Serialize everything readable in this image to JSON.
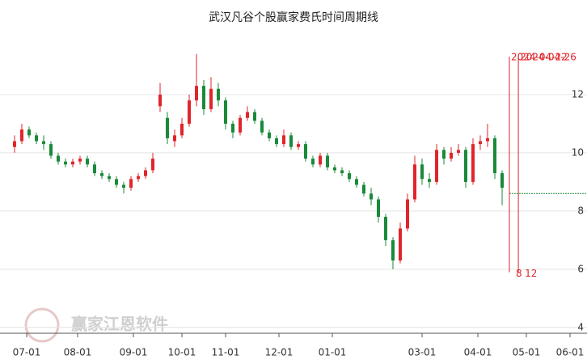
{
  "chart_data": {
    "type": "candlestick",
    "title": "武汉凡谷个股赢家费氏时间周期线",
    "watermark": "赢家江恩软件",
    "up_color": "#e0252b",
    "down_color": "#1a8a3a",
    "xlim": [
      0,
      236
    ],
    "ylim": [
      3.8,
      14
    ],
    "xticks": [
      {
        "value": 5,
        "label": "07-01"
      },
      {
        "value": 26,
        "label": "08-01"
      },
      {
        "value": 49,
        "label": "09-01"
      },
      {
        "value": 69,
        "label": "10-01"
      },
      {
        "value": 87,
        "label": "11-01"
      },
      {
        "value": 109,
        "label": "12-01"
      },
      {
        "value": 131,
        "label": "01-01"
      },
      {
        "value": 168,
        "label": "03-01"
      },
      {
        "value": 191,
        "label": "04-01"
      },
      {
        "value": 211,
        "label": "05-01"
      },
      {
        "value": 229,
        "label": "06-01"
      }
    ],
    "yticks": [
      4,
      6,
      8,
      10,
      12
    ],
    "grid": true,
    "x": [
      0,
      3,
      6,
      9,
      12,
      15,
      18,
      21,
      24,
      27,
      30,
      33,
      36,
      39,
      42,
      45,
      48,
      51,
      54,
      57,
      60,
      63,
      66,
      69,
      72,
      75,
      78,
      81,
      84,
      87,
      90,
      93,
      96,
      99,
      102,
      105,
      108,
      111,
      114,
      117,
      120,
      123,
      126,
      129,
      132,
      135,
      138,
      141,
      144,
      147,
      150,
      153,
      156,
      159,
      162,
      165,
      168,
      171,
      174,
      177,
      180,
      183,
      186,
      189,
      192,
      195,
      198,
      201
    ],
    "candles": [
      [
        10.2,
        10.6,
        10.0,
        10.4
      ],
      [
        10.4,
        11.0,
        10.3,
        10.8
      ],
      [
        10.8,
        10.9,
        10.5,
        10.6
      ],
      [
        10.6,
        10.7,
        10.3,
        10.4
      ],
      [
        10.4,
        10.6,
        10.1,
        10.3
      ],
      [
        10.3,
        10.4,
        9.8,
        9.9
      ],
      [
        9.9,
        10.0,
        9.6,
        9.7
      ],
      [
        9.7,
        9.8,
        9.5,
        9.6
      ],
      [
        9.6,
        9.8,
        9.5,
        9.7
      ],
      [
        9.7,
        9.9,
        9.6,
        9.8
      ],
      [
        9.8,
        9.9,
        9.5,
        9.6
      ],
      [
        9.6,
        9.7,
        9.2,
        9.3
      ],
      [
        9.3,
        9.4,
        9.1,
        9.2
      ],
      [
        9.2,
        9.3,
        9.0,
        9.1
      ],
      [
        9.1,
        9.2,
        8.8,
        8.9
      ],
      [
        8.9,
        9.0,
        8.6,
        8.8
      ],
      [
        8.8,
        9.2,
        8.7,
        9.1
      ],
      [
        9.1,
        9.3,
        9.0,
        9.2
      ],
      [
        9.2,
        9.5,
        9.1,
        9.4
      ],
      [
        9.4,
        10.0,
        9.3,
        9.8
      ],
      [
        11.6,
        12.4,
        11.4,
        12.0
      ],
      [
        11.2,
        11.4,
        10.3,
        10.5
      ],
      [
        10.4,
        10.8,
        10.2,
        10.6
      ],
      [
        10.6,
        11.2,
        10.5,
        11.0
      ],
      [
        11.0,
        12.0,
        10.9,
        11.8
      ],
      [
        11.8,
        13.4,
        11.6,
        12.3
      ],
      [
        12.3,
        12.5,
        11.3,
        11.5
      ],
      [
        11.5,
        12.6,
        11.4,
        12.2
      ],
      [
        12.2,
        12.4,
        11.6,
        11.8
      ],
      [
        11.8,
        11.9,
        10.8,
        11.0
      ],
      [
        11.0,
        11.1,
        10.5,
        10.7
      ],
      [
        10.7,
        11.3,
        10.6,
        11.2
      ],
      [
        11.2,
        11.6,
        11.1,
        11.4
      ],
      [
        11.4,
        11.5,
        11.0,
        11.1
      ],
      [
        11.1,
        11.2,
        10.6,
        10.7
      ],
      [
        10.7,
        10.8,
        10.4,
        10.5
      ],
      [
        10.5,
        10.6,
        10.2,
        10.3
      ],
      [
        10.3,
        10.8,
        10.2,
        10.6
      ],
      [
        10.6,
        10.7,
        10.1,
        10.2
      ],
      [
        10.2,
        10.4,
        10.1,
        10.3
      ],
      [
        10.3,
        10.4,
        9.7,
        9.8
      ],
      [
        9.8,
        9.9,
        9.5,
        9.6
      ],
      [
        9.6,
        10.0,
        9.5,
        9.9
      ],
      [
        9.9,
        10.0,
        9.4,
        9.5
      ],
      [
        9.5,
        9.6,
        9.3,
        9.4
      ],
      [
        9.4,
        9.5,
        9.2,
        9.3
      ],
      [
        9.3,
        9.4,
        9.0,
        9.1
      ],
      [
        9.1,
        9.2,
        8.8,
        8.9
      ],
      [
        8.9,
        9.0,
        8.5,
        8.6
      ],
      [
        8.6,
        8.8,
        8.2,
        8.4
      ],
      [
        8.4,
        8.5,
        7.6,
        7.8
      ],
      [
        7.8,
        7.9,
        6.8,
        7.0
      ],
      [
        7.0,
        7.1,
        6.0,
        6.3
      ],
      [
        6.3,
        7.6,
        6.2,
        7.4
      ],
      [
        7.4,
        8.6,
        7.3,
        8.4
      ],
      [
        8.4,
        9.9,
        8.3,
        9.6
      ],
      [
        9.6,
        9.8,
        8.9,
        9.1
      ],
      [
        9.1,
        9.3,
        8.8,
        9.0
      ],
      [
        9.0,
        10.3,
        8.9,
        10.1
      ],
      [
        10.1,
        10.2,
        9.6,
        9.8
      ],
      [
        9.8,
        10.2,
        9.7,
        10.0
      ],
      [
        10.0,
        10.3,
        9.9,
        10.1
      ],
      [
        10.1,
        10.2,
        8.8,
        9.0
      ],
      [
        9.0,
        10.5,
        8.9,
        10.3
      ],
      [
        10.3,
        10.6,
        10.1,
        10.4
      ],
      [
        10.4,
        11.0,
        10.2,
        10.5
      ],
      [
        10.5,
        10.6,
        9.1,
        9.3
      ],
      [
        9.3,
        9.4,
        8.2,
        8.8
      ]
    ],
    "last_price": 8.6,
    "fib_lines": [
      {
        "x": 204,
        "date": "2024-04-22",
        "label": "8"
      },
      {
        "x": 207.7,
        "date": "2024-04-26",
        "label": "12"
      }
    ]
  }
}
